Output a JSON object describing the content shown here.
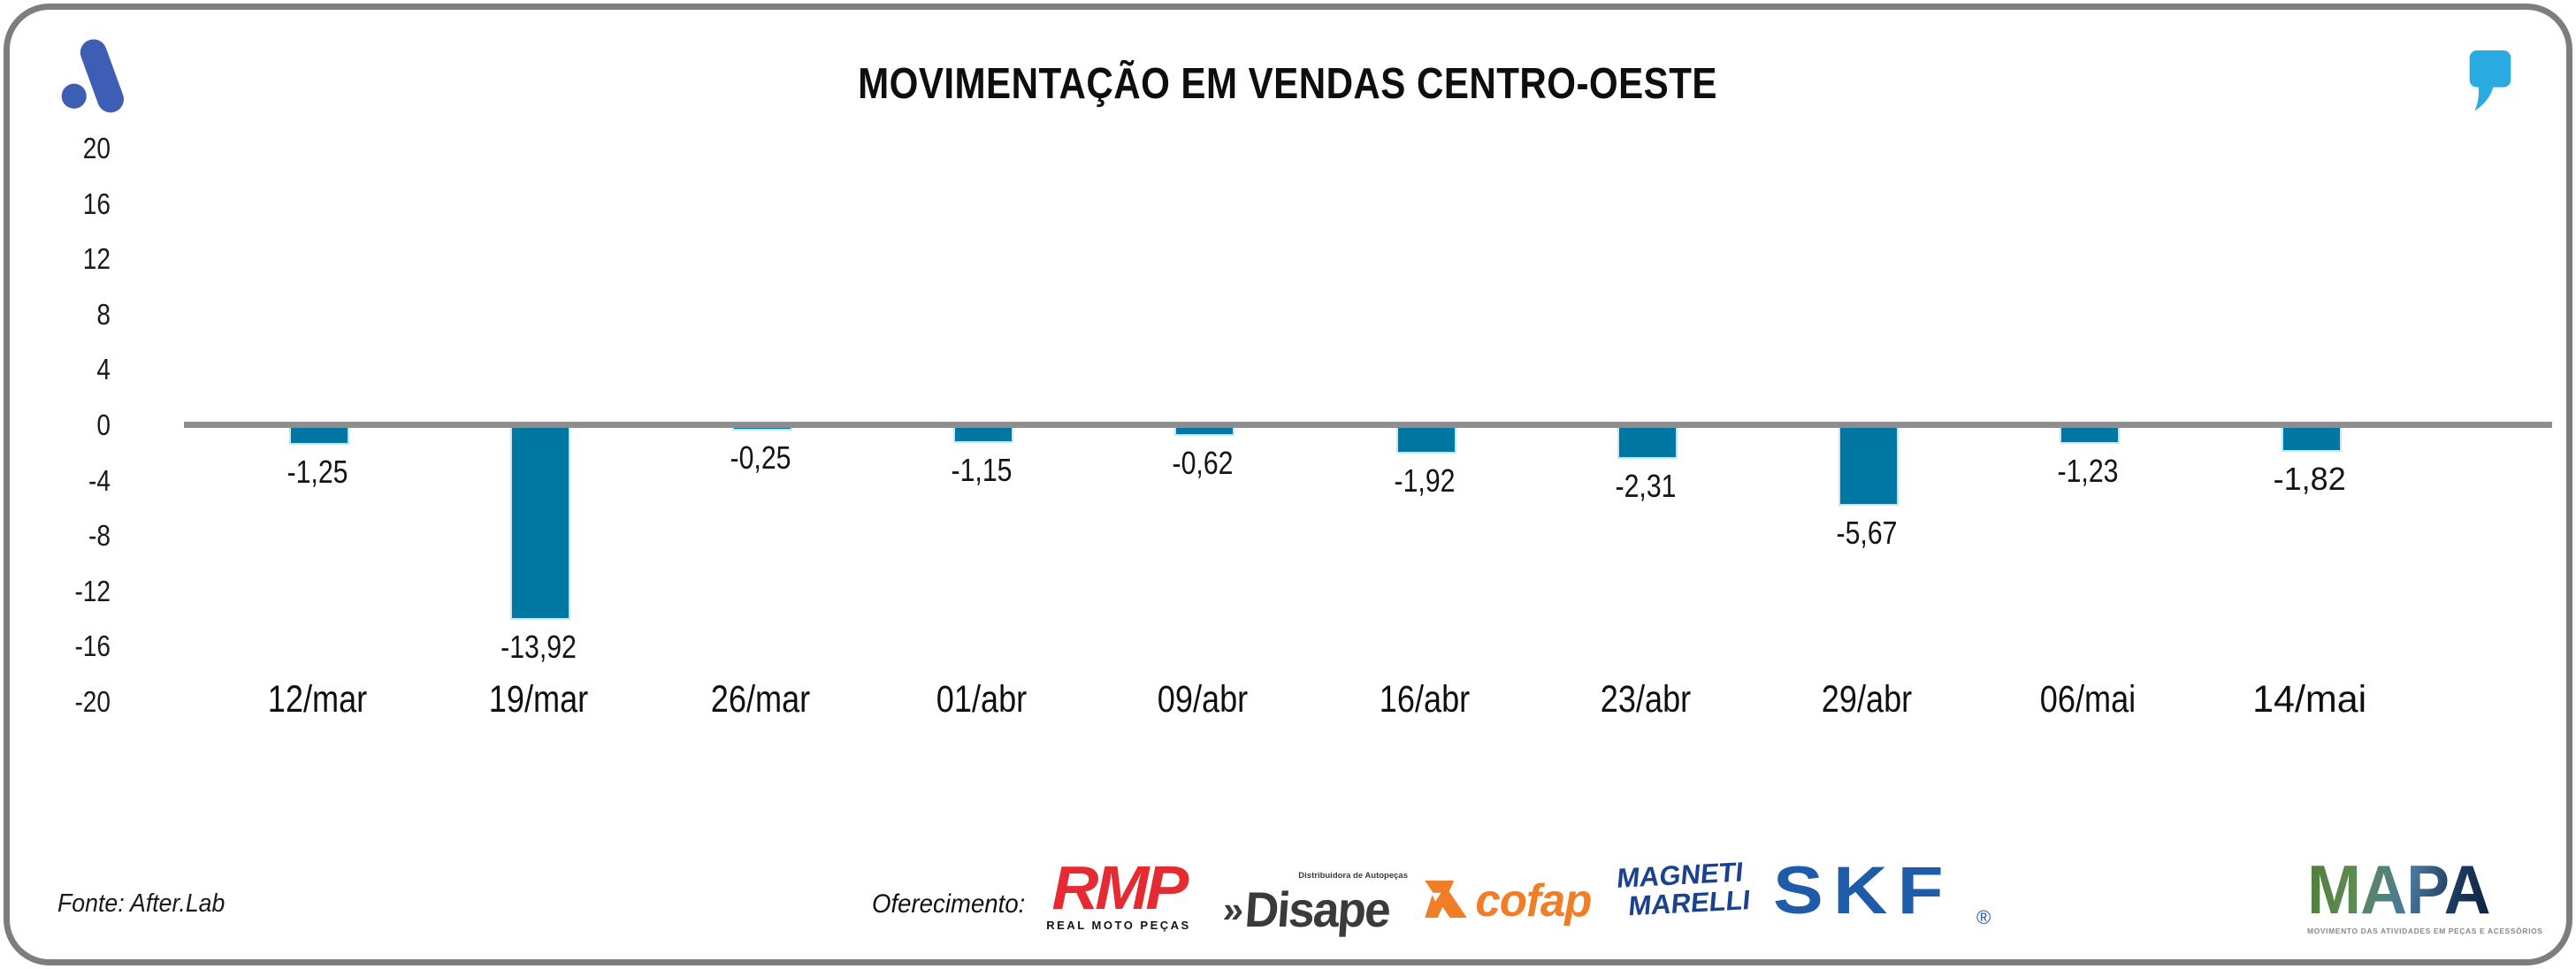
{
  "header": {
    "title": "MOVIMENTAÇÃO EM VENDAS CENTRO-OESTE"
  },
  "chart_data": {
    "type": "bar",
    "title": "MOVIMENTAÇÃO EM VENDAS CENTRO-OESTE",
    "categories": [
      "12/mar",
      "19/mar",
      "26/mar",
      "01/abr",
      "09/abr",
      "16/abr",
      "23/abr",
      "29/abr",
      "06/mai",
      "14/mai"
    ],
    "values": [
      -1.25,
      -13.92,
      -0.25,
      -1.15,
      -0.62,
      -1.92,
      -2.31,
      -5.67,
      -1.23,
      -1.82
    ],
    "value_labels": [
      "-1,25",
      "-13,92",
      "-0,25",
      "-1,15",
      "-0,62",
      "-1,92",
      "-2,31",
      "-5,67",
      "-1,23",
      "-1,82"
    ],
    "y_ticks": [
      20,
      16,
      12,
      8,
      4,
      0,
      -4,
      -8,
      -12,
      -16,
      -20
    ],
    "ylim": [
      -20,
      20
    ],
    "grid": false,
    "legend": null,
    "bar_color": "#0076A3",
    "zero_line_color": "#8E8E8E"
  },
  "icons": {
    "after_lab_logo": "after-lab-a-mark",
    "quote": "quote-mark",
    "after_lab_blue": "#3E5DB5",
    "quote_blue": "#29ABE2"
  },
  "footer": {
    "source": "Fonte: After.Lab",
    "sponsor_label": "Oferecimento:",
    "sponsors": {
      "rmp": {
        "name": "RMP",
        "subtitle": "REAL MOTO PEÇAS",
        "color": "#E62A31"
      },
      "disape": {
        "prefix": "»",
        "name": "Disape",
        "subtitle": "Distribuidora de Autopeças",
        "color": "#3A3A39"
      },
      "cofap": {
        "name": "cofap",
        "color": "#F07E26"
      },
      "magneti_marelli": {
        "line1": "MAGNETI",
        "line2": "MARELLI",
        "color": "#1A428F"
      },
      "skf": {
        "name": "SKF",
        "registered": "®",
        "color": "#1E5BA9"
      },
      "mapa": {
        "name": "MAPA",
        "subtitle": "MOVIMENTO DAS ATIVIDADES EM PEÇAS E ACESSÓRIOS"
      }
    }
  }
}
